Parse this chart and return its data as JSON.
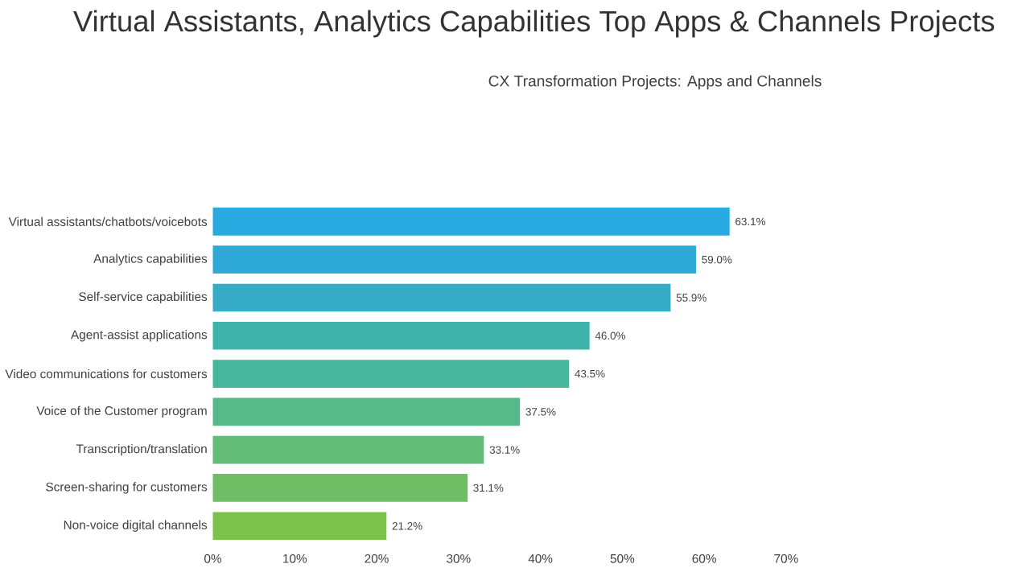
{
  "chart_data": {
    "type": "bar",
    "orientation": "horizontal",
    "title": "Virtual Assistants, Analytics Capabilities Top Apps & Channels Projects",
    "subtitle": "CX Transformation Projects: Apps and Channels",
    "categories": [
      "Virtual assistants/chatbots/voicebots",
      "Analytics capabilities",
      "Self-service capabilities",
      "Agent-assist applications",
      "Video communications for customers",
      "Voice of the Customer program",
      "Transcription/translation",
      "Screen-sharing for customers",
      "Non-voice digital channels"
    ],
    "values": [
      63.1,
      59.0,
      55.9,
      46.0,
      43.5,
      37.5,
      33.1,
      31.1,
      21.2
    ],
    "value_labels": [
      "63.1%",
      "59.0%",
      "55.9%",
      "46.0%",
      "43.5%",
      "37.5%",
      "33.1%",
      "31.1%",
      "21.2%"
    ],
    "colors": [
      "#29abe2",
      "#2faad6",
      "#36acc6",
      "#3db3aa",
      "#46b79a",
      "#56b98a",
      "#63bc78",
      "#6fbe66",
      "#7dc24a"
    ],
    "xlim": [
      0,
      70
    ],
    "xticks": [
      {
        "value": 0,
        "label": "0%"
      },
      {
        "value": 10,
        "label": "10%"
      },
      {
        "value": 20,
        "label": "20%"
      },
      {
        "value": 30,
        "label": "30%"
      },
      {
        "value": 40,
        "label": "40%"
      },
      {
        "value": 50,
        "label": "50%"
      },
      {
        "value": 60,
        "label": "60%"
      },
      {
        "value": 70,
        "label": "70%"
      }
    ]
  }
}
